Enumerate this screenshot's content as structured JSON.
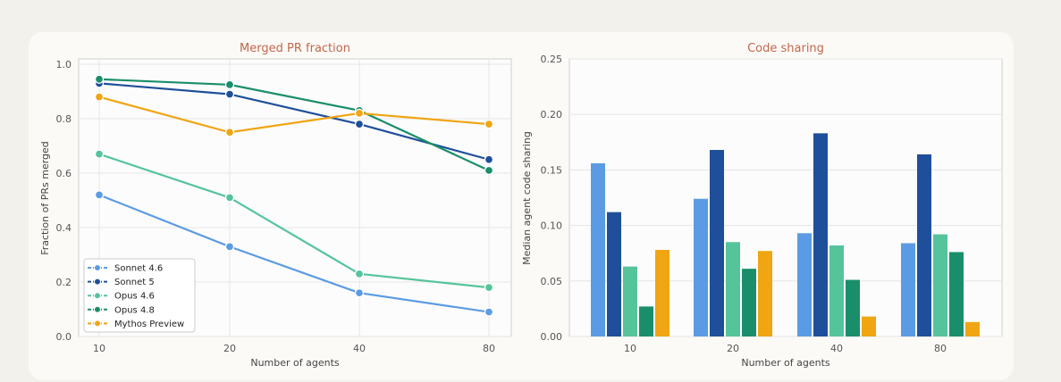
{
  "chart_data": [
    {
      "type": "line",
      "title": "Merged PR fraction",
      "xlabel": "Number of agents",
      "ylabel": "Fraction of PRs merged",
      "categories": [
        "10",
        "20",
        "40",
        "80"
      ],
      "ylim": [
        0.0,
        1.0
      ],
      "yticks": [
        "0.0",
        "0.2",
        "0.4",
        "0.6",
        "0.8",
        "1.0"
      ],
      "grid": true,
      "legend_position": "bottom-left",
      "series": [
        {
          "name": "Sonnet 4.6",
          "color": "#5b9be3",
          "values": [
            0.52,
            0.33,
            0.16,
            0.09
          ]
        },
        {
          "name": "Sonnet 5",
          "color": "#1f4f9a",
          "values": [
            0.93,
            0.89,
            0.78,
            0.65
          ]
        },
        {
          "name": "Opus 4.6",
          "color": "#55c49a",
          "values": [
            0.67,
            0.51,
            0.23,
            0.18
          ]
        },
        {
          "name": "Opus 4.8",
          "color": "#1a8e6a",
          "values": [
            0.945,
            0.925,
            0.83,
            0.61
          ]
        },
        {
          "name": "Mythos Preview",
          "color": "#f0a513",
          "values": [
            0.88,
            0.75,
            0.82,
            0.78
          ]
        }
      ]
    },
    {
      "type": "bar",
      "title": "Code sharing",
      "xlabel": "Number of agents",
      "ylabel": "Median agent code sharing",
      "categories": [
        "10",
        "20",
        "40",
        "80"
      ],
      "ylim": [
        0.0,
        0.25
      ],
      "yticks": [
        "0.00",
        "0.05",
        "0.10",
        "0.15",
        "0.20",
        "0.25"
      ],
      "grid": true,
      "series": [
        {
          "color": "#5b9be3",
          "values": [
            0.156,
            0.124,
            0.093,
            0.084
          ]
        },
        {
          "color": "#1f4f9a",
          "values": [
            0.112,
            0.168,
            0.183,
            0.164
          ]
        },
        {
          "color": "#55c49a",
          "values": [
            0.063,
            0.085,
            0.082,
            0.092
          ]
        },
        {
          "color": "#1a8e6a",
          "values": [
            0.027,
            0.061,
            0.051,
            0.076
          ]
        },
        {
          "color": "#f0a513",
          "values": [
            0.078,
            0.077,
            0.018,
            0.013
          ]
        }
      ]
    }
  ]
}
